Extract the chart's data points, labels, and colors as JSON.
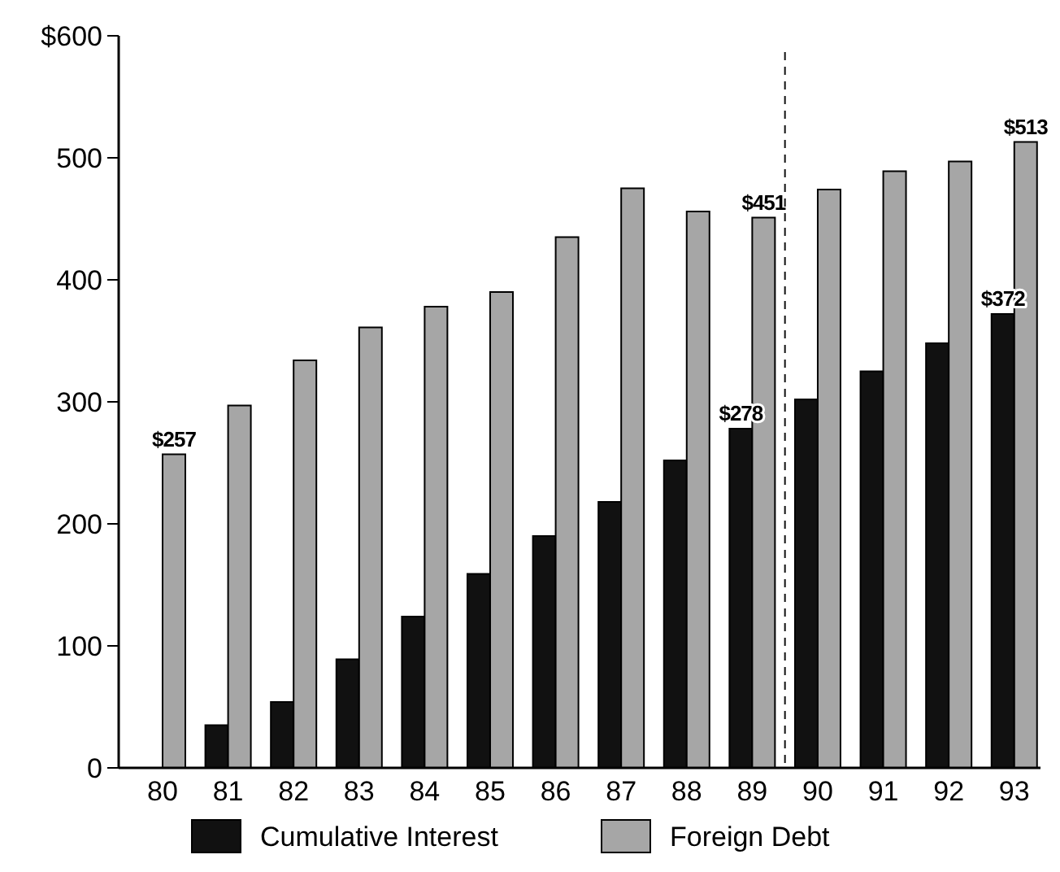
{
  "chart_data": {
    "type": "bar",
    "x": [
      80,
      81,
      82,
      83,
      84,
      85,
      86,
      87,
      88,
      89,
      90,
      91,
      92,
      93
    ],
    "xlim": [
      79.33,
      93.4
    ],
    "xticks": [
      80,
      81,
      82,
      83,
      84,
      85,
      86,
      87,
      88,
      89,
      90,
      91,
      92,
      93
    ],
    "ylim": [
      0,
      600
    ],
    "yticks": [
      0,
      100,
      200,
      300,
      400,
      500,
      {
        "value": 600,
        "label": "$600"
      }
    ],
    "series": [
      {
        "name": "Cumulative Interest",
        "color": "#111111",
        "values": [
          0,
          35,
          54,
          89,
          124,
          159,
          190,
          218,
          252,
          278,
          302,
          325,
          348,
          372
        ],
        "value_labels": [
          null,
          null,
          null,
          null,
          null,
          null,
          null,
          null,
          null,
          "$278",
          null,
          null,
          null,
          "$372"
        ]
      },
      {
        "name": "Foreign Debt",
        "color": "#a6a6a6",
        "values": [
          257,
          297,
          334,
          361,
          378,
          390,
          435,
          475,
          456,
          451,
          474,
          489,
          497,
          513
        ],
        "value_labels": [
          "$257",
          null,
          null,
          null,
          null,
          null,
          null,
          null,
          null,
          "$451",
          null,
          null,
          null,
          "$513"
        ]
      }
    ],
    "ref_lines": [
      {
        "axis": "x",
        "value": 89.5,
        "line_style": "dashed",
        "color": "#111111"
      }
    ],
    "legend": "bottom",
    "grid": false
  }
}
